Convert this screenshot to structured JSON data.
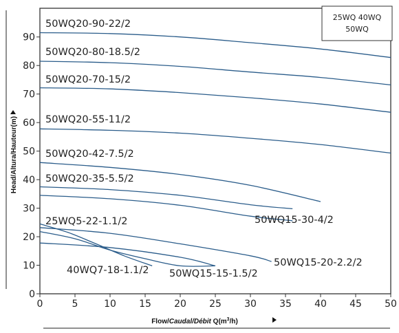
{
  "chart_data": {
    "type": "line",
    "legend": {
      "line1": "25WQ 40WQ",
      "line2": "50WQ"
    },
    "xlabel": {
      "plain": "Flow/",
      "italic": "Caudal/Débit",
      "rest": " Q(m",
      "sup": "3",
      "end": "/h)"
    },
    "ylabel": "Head/Altura/Hauteur(m)",
    "xlim": [
      0,
      50
    ],
    "ylim": [
      0,
      95
    ],
    "xticks": [
      0,
      5,
      10,
      15,
      20,
      25,
      30,
      35,
      40,
      45,
      50
    ],
    "yticks": [
      0,
      10,
      20,
      30,
      40,
      50,
      60,
      70,
      80,
      90
    ],
    "series": [
      {
        "name": "50WQ20-90-22/2",
        "points": [
          [
            0,
            91.5
          ],
          [
            10,
            91.2
          ],
          [
            20,
            90
          ],
          [
            30,
            88
          ],
          [
            40,
            85.8
          ],
          [
            50,
            82.8
          ]
        ]
      },
      {
        "name": "50WQ20-80-18.5/2",
        "points": [
          [
            0,
            81.5
          ],
          [
            10,
            81
          ],
          [
            20,
            79.7
          ],
          [
            30,
            77.7
          ],
          [
            40,
            75.8
          ],
          [
            50,
            73.2
          ]
        ]
      },
      {
        "name": "50WQ20-70-15/2",
        "points": [
          [
            0,
            72.2
          ],
          [
            10,
            71.8
          ],
          [
            20,
            70.5
          ],
          [
            30,
            68.7
          ],
          [
            40,
            66.5
          ],
          [
            50,
            63.6
          ]
        ]
      },
      {
        "name": "50WQ20-55-11/2",
        "points": [
          [
            0,
            57.8
          ],
          [
            10,
            57.3
          ],
          [
            20,
            56.3
          ],
          [
            30,
            54.5
          ],
          [
            40,
            52.3
          ],
          [
            50,
            49.3
          ]
        ]
      },
      {
        "name": "50WQ20-42-7.5/2",
        "points": [
          [
            0,
            46
          ],
          [
            10,
            44.3
          ],
          [
            20,
            41.8
          ],
          [
            30,
            38
          ],
          [
            40,
            32.3
          ]
        ]
      },
      {
        "name": "50WQ20-35-5.5/2",
        "points": [
          [
            0,
            37.5
          ],
          [
            10,
            36.5
          ],
          [
            20,
            34.5
          ],
          [
            30,
            31.2
          ],
          [
            36,
            29.8
          ]
        ]
      },
      {
        "name": "50WQ15-30-4/2",
        "points": [
          [
            0,
            34.5
          ],
          [
            10,
            33.3
          ],
          [
            20,
            31
          ],
          [
            30,
            27.2
          ],
          [
            36,
            25.6
          ]
        ]
      },
      {
        "name": "50WQ15-20-2.2/2",
        "points": [
          [
            0,
            23.2
          ],
          [
            10,
            21.2
          ],
          [
            20,
            17.5
          ],
          [
            30,
            13.3
          ],
          [
            33,
            11.3
          ]
        ]
      },
      {
        "name": "25WQ5-22-1.1/2",
        "points": [
          [
            0,
            24.5
          ],
          [
            4,
            21.5
          ],
          [
            8,
            17.5
          ],
          [
            12,
            13.3
          ],
          [
            16,
            9.8
          ]
        ]
      },
      {
        "name": "40WQ7-18-1.1/2",
        "points": [
          [
            0,
            21.8
          ],
          [
            5,
            19.3
          ],
          [
            10,
            15.3
          ],
          [
            15,
            12.3
          ],
          [
            20,
            9.8
          ],
          [
            25,
            9.8
          ]
        ]
      },
      {
        "name": "50WQ15-15-1.5/2",
        "points": [
          [
            0,
            17.8
          ],
          [
            10,
            16.2
          ],
          [
            20,
            12.8
          ],
          [
            25,
            9.8
          ]
        ]
      }
    ]
  }
}
